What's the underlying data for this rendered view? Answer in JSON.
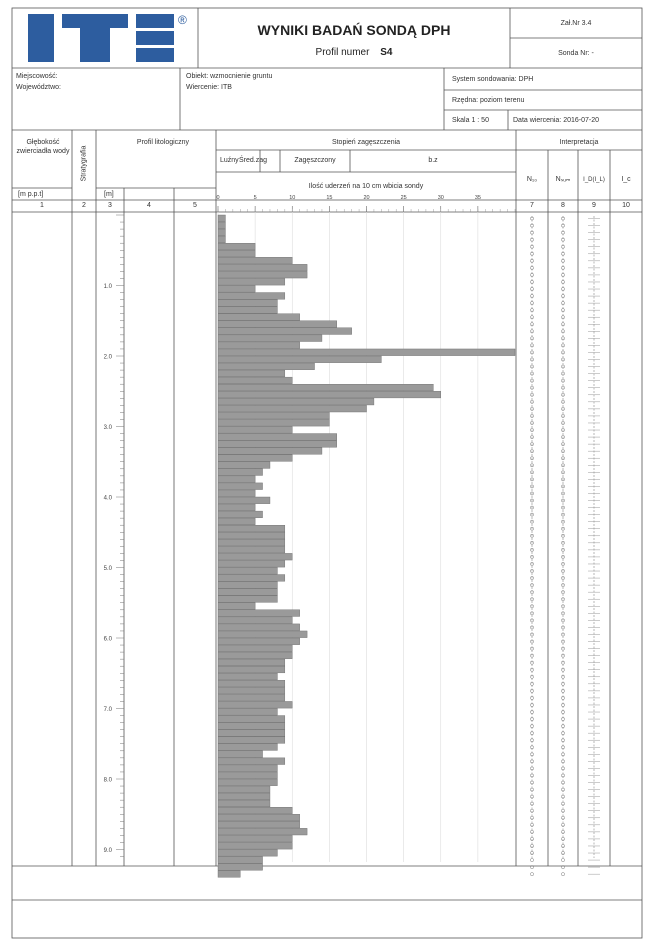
{
  "header": {
    "logo_text": "ITB",
    "logo_mark": "®",
    "title": "WYNIKI BADAŃ SONDĄ DPH",
    "profile_label": "Profil numer",
    "profile_number": "S4",
    "annex": "Zał.Nr  3.4",
    "probe": "Sonda Nr:  -"
  },
  "info": {
    "locality": "Miejscowość:",
    "province": "Województwo:",
    "object": "Obiekt: wzmocnienie gruntu",
    "drilling": "Wiercenie: ITB",
    "system": "System sondowania: DPH",
    "elevation": "Rzędna: poziom terenu",
    "scale": "Skala 1 : 50",
    "date": "Data wiercenia: 2016-07-20"
  },
  "columns": {
    "depth_water": "Głębokość zwierciadła wody",
    "stratigraphy": "Stratygrafia",
    "profile": "Profil litologiczny",
    "density_title": "Stopień zagęszczenia",
    "density_loose": "Luźny",
    "density_medium": "Śred.zag",
    "density_dense": "Zagęszczony",
    "density_very_dense": "b.z",
    "blows_label": "Ilość uderzeń na 10 cm wbicia sondy",
    "interpretation": "Interpretacja",
    "n10": "N₁₀",
    "nsum": "Nₛᵤₘ",
    "id_col": "I_D(I_L)",
    "ic_col": "I_c",
    "unit_mpp": "[m p.p.t]",
    "unit_m": "[m]",
    "num_1": "1",
    "num_2": "2",
    "num_3": "3",
    "num_4": "4",
    "num_5": "5",
    "num_7": "7",
    "num_8": "8",
    "num_9": "9",
    "num_10": "10"
  },
  "chart_data": {
    "type": "bar",
    "orientation": "horizontal",
    "xlabel": "Ilość uderzeń na 10 cm wbicia sondy",
    "ylabel": "[m]",
    "x_ticks": [
      0,
      5,
      10,
      15,
      20,
      25,
      30,
      35
    ],
    "xlim": [
      0,
      40
    ],
    "y_ticks": [
      "1.0",
      "2.0",
      "3.0",
      "4.0",
      "5.0",
      "6.0",
      "7.0",
      "8.0",
      "9.0"
    ],
    "ylim": [
      0,
      9.1
    ],
    "depth_step": 0.1,
    "values": [
      1,
      1,
      1,
      1,
      5,
      5,
      10,
      12,
      12,
      9,
      5,
      9,
      8,
      8,
      11,
      16,
      18,
      14,
      11,
      40,
      22,
      13,
      9,
      10,
      29,
      30,
      21,
      20,
      15,
      15,
      10,
      16,
      16,
      14,
      10,
      7,
      6,
      5,
      6,
      5,
      7,
      5,
      6,
      5,
      9,
      9,
      9,
      9,
      10,
      9,
      8,
      9,
      8,
      8,
      8,
      5,
      11,
      10,
      11,
      12,
      11,
      10,
      10,
      9,
      9,
      8,
      9,
      9,
      9,
      10,
      8,
      9,
      9,
      9,
      9,
      8,
      6,
      9,
      8,
      8,
      8,
      7,
      7,
      7,
      10,
      11,
      11,
      12,
      10,
      10,
      8,
      6,
      6,
      3
    ]
  }
}
